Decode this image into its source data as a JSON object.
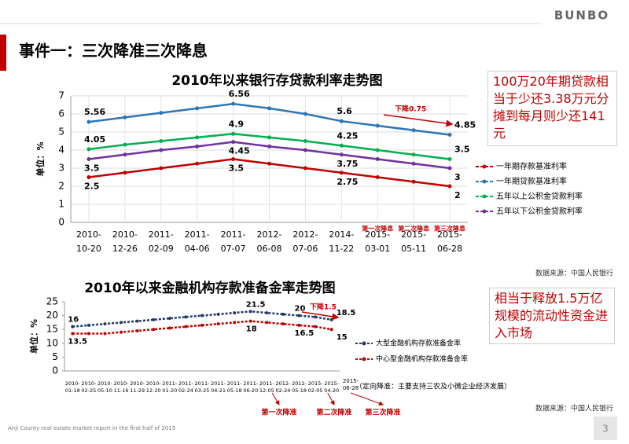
{
  "header": {
    "title": "事件一：三次降准三次降息",
    "logo": "BUNBO"
  },
  "chart_data": [
    {
      "type": "line",
      "title": "2010年以来银行存贷款利率走势图",
      "y_label": "单位：%",
      "categories": [
        "2010-10-20",
        "2010-12-26",
        "2011-02-09",
        "2011-04-06",
        "2011-07-07",
        "2012-06-08",
        "2012-07-06",
        "2014-11-22",
        "2015-03-01",
        "2015-05-11",
        "2015-06-28"
      ],
      "series": [
        {
          "name": "一年期存款基准利率",
          "color": "#c00000",
          "values": [
            2.5,
            2.75,
            3,
            3.25,
            3.5,
            3.25,
            3,
            2.75,
            2.5,
            2.25,
            2
          ]
        },
        {
          "name": "一年期贷款基准利率",
          "color": "#2e75b6",
          "values": [
            5.56,
            5.81,
            6.06,
            6.31,
            6.56,
            6.31,
            6,
            5.6,
            5.35,
            5.1,
            4.85
          ]
        },
        {
          "name": "五年以上公积金贷款利率",
          "color": "#00b050",
          "values": [
            4.05,
            4.3,
            4.5,
            4.7,
            4.9,
            4.7,
            4.5,
            4.25,
            4,
            3.75,
            3.5
          ]
        },
        {
          "name": "五年以下公积金贷款利率",
          "color": "#7030a0",
          "values": [
            3.5,
            3.75,
            4,
            4.2,
            4.45,
            4.2,
            4,
            3.75,
            3.5,
            3.25,
            3
          ]
        }
      ],
      "label_indices": [
        0,
        4,
        7,
        10
      ],
      "ylim": [
        0,
        7
      ],
      "yticks": [
        0,
        1,
        2,
        3,
        4,
        5,
        6,
        7
      ],
      "grid": true,
      "legend": "right",
      "annotations": [
        "下降0.75",
        "第一次降息",
        "第二次降息",
        "第三次降息"
      ],
      "source": "数据来源：中国人民银行"
    },
    {
      "type": "line",
      "title": "2010年以来金融机构存款准备金率走势图",
      "y_label": "单位：%",
      "categories": [
        "2010-01-18",
        "2010-02-25",
        "2010-05-10",
        "2010-11-16",
        "2010-11-29",
        "2010-12-20",
        "2011-01-20",
        "2011-02-24",
        "2011-03-25",
        "2011-04-21",
        "2011-05-18",
        "2011-06-20",
        "2011-12-05",
        "2012-02-24",
        "2012-05-18",
        "2015-02-05",
        "2015-04-20"
      ],
      "series": [
        {
          "name": "大型金融机构存款准备金率",
          "color": "#1f3864",
          "values": [
            16,
            16.5,
            17,
            17.5,
            18,
            18.5,
            19,
            19.5,
            20,
            20.5,
            21,
            21.5,
            21,
            20.5,
            20,
            19.5,
            18.5
          ]
        },
        {
          "name": "中心型金融机构存款准备金率",
          "color": "#c00000",
          "values": [
            13.5,
            13.5,
            13.5,
            14,
            14.5,
            15,
            15.5,
            16,
            16.5,
            17,
            17.5,
            18,
            17.5,
            17,
            16.5,
            16,
            15
          ]
        }
      ],
      "label_indices": [
        0,
        11,
        14,
        16
      ],
      "ylim": [
        0,
        25
      ],
      "yticks": [
        0,
        5,
        10,
        15,
        20,
        25
      ],
      "grid": false,
      "legend": "right",
      "extra_category": "2015-06-28",
      "note": "（定向降准：主要支持三农及小微企业经济发展）",
      "annotations": [
        "下降1.5",
        "第一次降准",
        "第二次降准",
        "第三次降准"
      ],
      "source": "数据来源：中国人民银行"
    }
  ],
  "notes": [
    "100万20年期贷款相当于少还3.38万元分摊到每月则少还141元",
    "相当于释放1.5万亿规模的流动性资金进入市场"
  ],
  "footer": {
    "text": "Anji County real estate market report in the first half of 2015",
    "page": "3"
  }
}
